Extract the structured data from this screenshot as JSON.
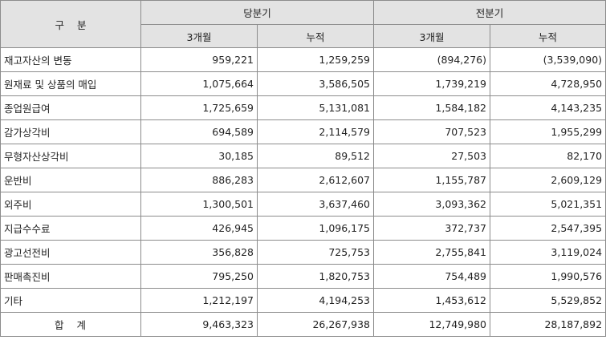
{
  "header": {
    "category": "구    분",
    "current_period": "당분기",
    "previous_period": "전분기",
    "three_months": "3개월",
    "cumulative": "누적"
  },
  "rows": [
    {
      "label": "재고자산의 변동",
      "cur_3m": "959,221",
      "cur_cum": "1,259,259",
      "prev_3m": "(894,276)",
      "prev_cum": "(3,539,090)"
    },
    {
      "label": "원재료 및 상품의 매입",
      "cur_3m": "1,075,664",
      "cur_cum": "3,586,505",
      "prev_3m": "1,739,219",
      "prev_cum": "4,728,950"
    },
    {
      "label": "종업원급여",
      "cur_3m": "1,725,659",
      "cur_cum": "5,131,081",
      "prev_3m": "1,584,182",
      "prev_cum": "4,143,235"
    },
    {
      "label": "감가상각비",
      "cur_3m": "694,589",
      "cur_cum": "2,114,579",
      "prev_3m": "707,523",
      "prev_cum": "1,955,299"
    },
    {
      "label": "무형자산상각비",
      "cur_3m": "30,185",
      "cur_cum": "89,512",
      "prev_3m": "27,503",
      "prev_cum": "82,170"
    },
    {
      "label": "운반비",
      "cur_3m": "886,283",
      "cur_cum": "2,612,607",
      "prev_3m": "1,155,787",
      "prev_cum": "2,609,129"
    },
    {
      "label": "외주비",
      "cur_3m": "1,300,501",
      "cur_cum": "3,637,460",
      "prev_3m": "3,093,362",
      "prev_cum": "5,021,351"
    },
    {
      "label": "지급수수료",
      "cur_3m": "426,945",
      "cur_cum": "1,096,175",
      "prev_3m": "372,737",
      "prev_cum": "2,547,395"
    },
    {
      "label": "광고선전비",
      "cur_3m": "356,828",
      "cur_cum": "725,753",
      "prev_3m": "2,755,841",
      "prev_cum": "3,119,024"
    },
    {
      "label": "판매촉진비",
      "cur_3m": "795,250",
      "cur_cum": "1,820,753",
      "prev_3m": "754,489",
      "prev_cum": "1,990,576"
    },
    {
      "label": "기타",
      "cur_3m": "1,212,197",
      "cur_cum": "4,194,253",
      "prev_3m": "1,453,612",
      "prev_cum": "5,529,852"
    }
  ],
  "total": {
    "label": "합    계",
    "cur_3m": "9,463,323",
    "cur_cum": "26,267,938",
    "prev_3m": "12,749,980",
    "prev_cum": "28,187,892"
  }
}
